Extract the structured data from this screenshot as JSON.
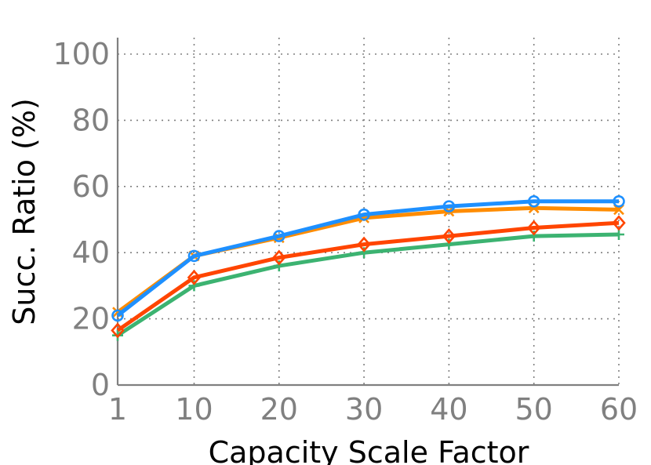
{
  "chart_data": {
    "type": "line",
    "title": "",
    "xlabel": "Capacity Scale Factor",
    "ylabel": "Succ. Ratio (%)",
    "x": [
      1,
      10,
      20,
      30,
      40,
      50,
      60
    ],
    "x_tick_labels": [
      "1",
      "10",
      "20",
      "30",
      "40",
      "50",
      "60"
    ],
    "xlim": [
      1,
      60
    ],
    "ylim": [
      0,
      100
    ],
    "y_ticks": [
      0,
      20,
      40,
      60,
      80,
      100
    ],
    "y_tick_labels": [
      "0",
      "20",
      "40",
      "60",
      "80",
      "100"
    ],
    "grid": true,
    "legend": "none",
    "series": [
      {
        "color": "#3cb371",
        "marker": "plus",
        "values": [
          15,
          30,
          36,
          40,
          42.5,
          45,
          45.5
        ]
      },
      {
        "color": "#ff4500",
        "marker": "diamond",
        "values": [
          16.5,
          32.5,
          38.5,
          42.5,
          45,
          47.5,
          49
        ]
      },
      {
        "color": "#ff8c00",
        "marker": "x",
        "values": [
          22,
          39,
          44.5,
          50.5,
          52.5,
          53.5,
          53
        ]
      },
      {
        "color": "#1e90ff",
        "marker": "circle",
        "values": [
          21,
          39,
          45,
          51.5,
          54,
          55.5,
          55.5
        ]
      }
    ]
  }
}
